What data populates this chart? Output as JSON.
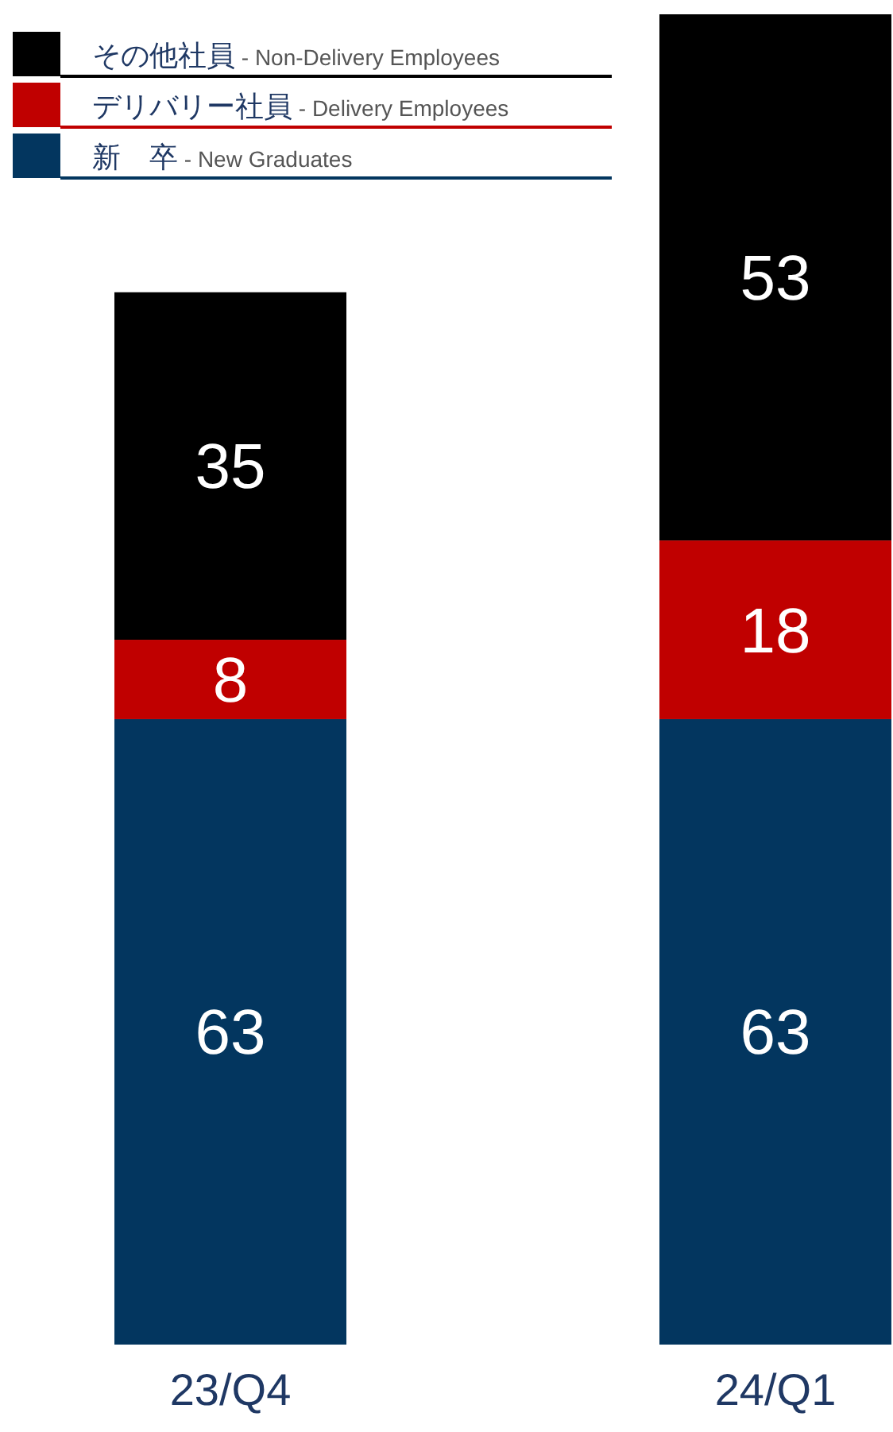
{
  "chart_data": {
    "type": "bar",
    "stacked": true,
    "data_labels": true,
    "legend": "top left",
    "categories": [
      "23/Q4",
      "24/Q1"
    ],
    "series": [
      {
        "name": "新　卒 - New Graduates",
        "color": "#03365f",
        "values": [
          63,
          63
        ]
      },
      {
        "name": "デリバリー社員 - Delivery Employees",
        "color": "#c00000",
        "values": [
          8,
          18
        ]
      },
      {
        "name": "その他社員 - Non-Delivery Employees",
        "color": "#000000",
        "values": [
          35,
          53
        ]
      }
    ]
  }
}
